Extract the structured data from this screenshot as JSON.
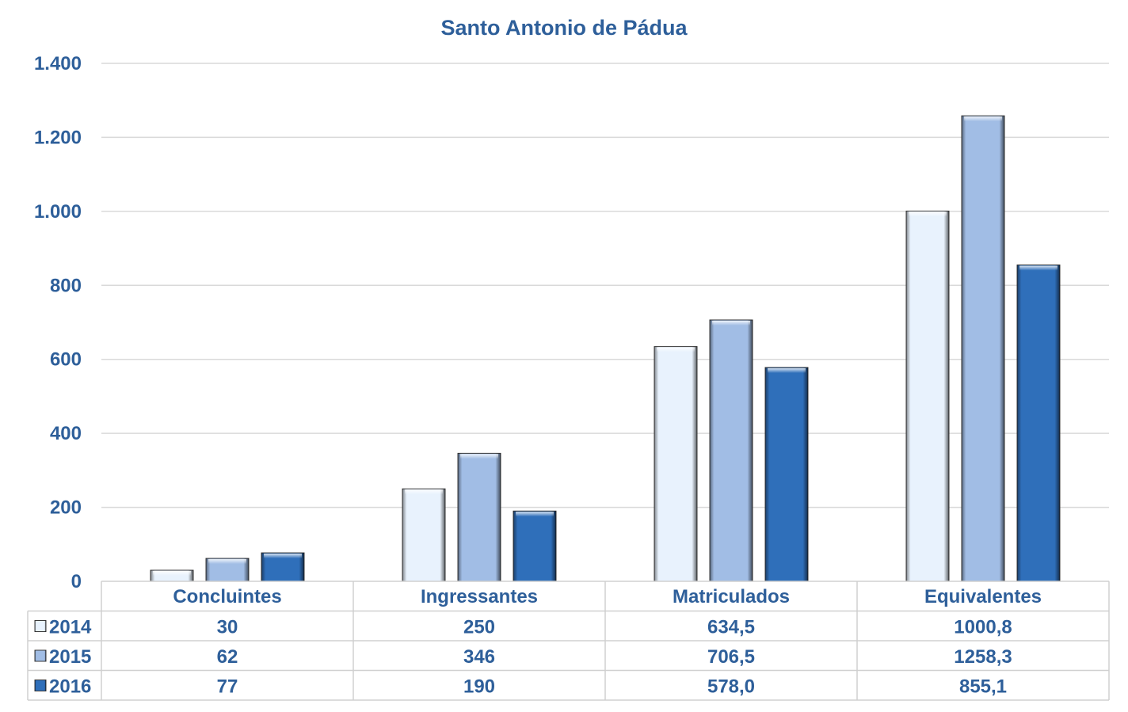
{
  "chart_data": {
    "type": "bar",
    "title": "Santo Antonio de Pádua",
    "categories": [
      "Concluintes",
      "Ingressantes",
      "Matriculados",
      "Equivalentes"
    ],
    "series": [
      {
        "name": "2014",
        "values": [
          30,
          250,
          634.5,
          1000.8
        ],
        "labels": [
          "30",
          "250",
          "634,5",
          "1000,8"
        ],
        "color": "#e8f2fd"
      },
      {
        "name": "2015",
        "values": [
          62,
          346,
          706.5,
          1258.3
        ],
        "labels": [
          "62",
          "346",
          "706,5",
          "1258,3"
        ],
        "color": "#a1bde5"
      },
      {
        "name": "2016",
        "values": [
          77,
          190,
          578.0,
          855.1
        ],
        "labels": [
          "77",
          "190",
          "578,0",
          "855,1"
        ],
        "color": "#2f6fba"
      }
    ],
    "ylim": [
      0,
      1400
    ],
    "yticks": [
      0,
      200,
      400,
      600,
      800,
      1000,
      1200,
      1400
    ],
    "ytick_labels": [
      "0",
      "200",
      "400",
      "600",
      "800",
      "1.000",
      "1.200",
      "1.400"
    ],
    "grid": true,
    "legend": "data-table",
    "text_color": "#2e5f9a",
    "grid_color": "#d9d9d9"
  }
}
